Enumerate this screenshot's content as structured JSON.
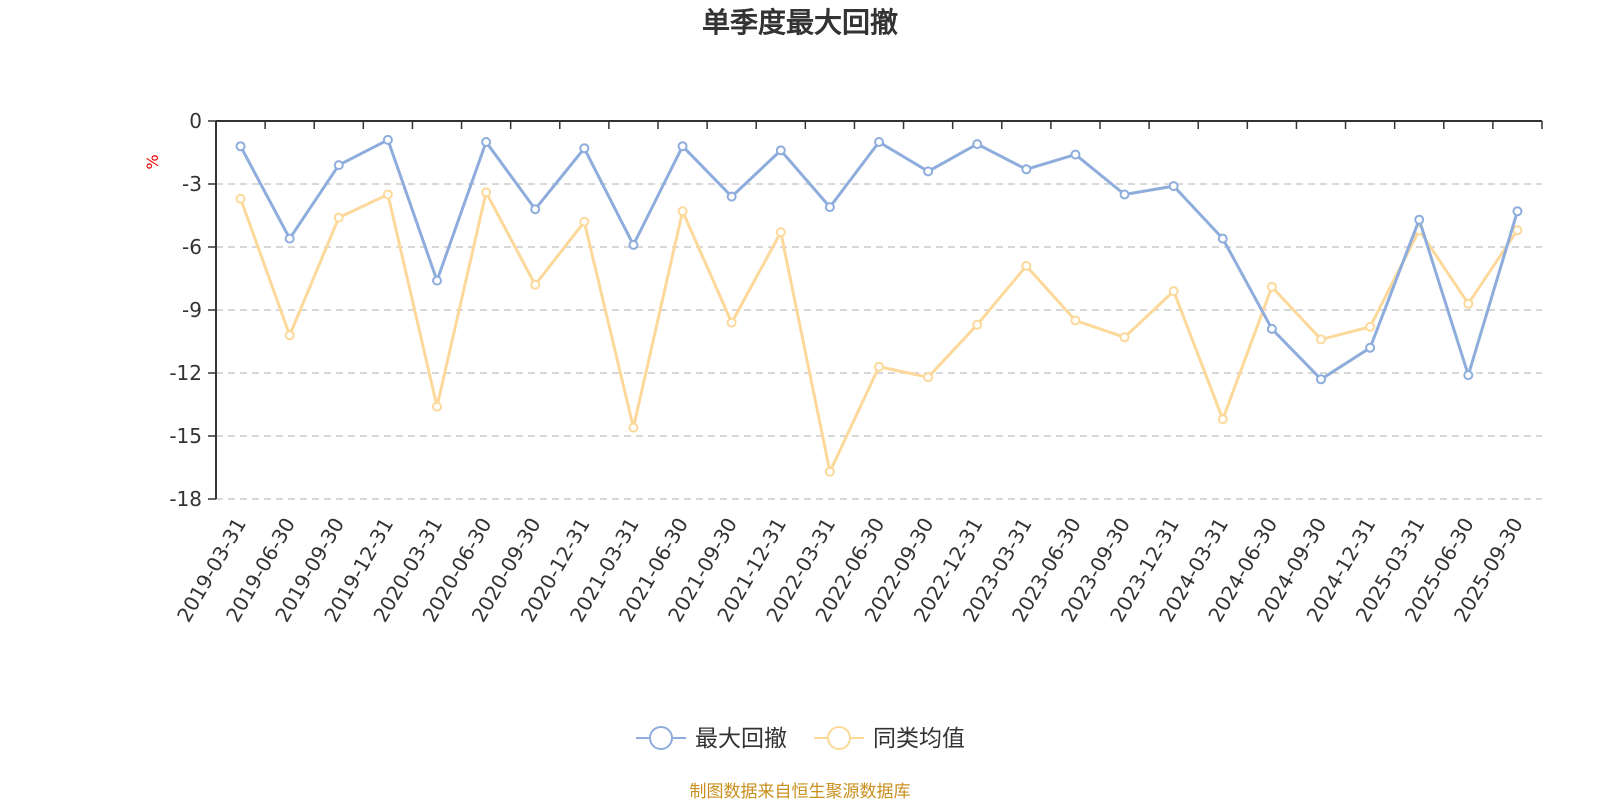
{
  "chart_data": {
    "type": "line",
    "title": "单季度最大回撤",
    "ylabel": "%",
    "ylim": [
      -18,
      0
    ],
    "yticks": [
      0,
      -3,
      -6,
      -9,
      -12,
      -15,
      -18
    ],
    "grid": true,
    "legend_position": "bottom-center",
    "categories": [
      "2019-03-31",
      "2019-06-30",
      "2019-09-30",
      "2019-12-31",
      "2020-03-31",
      "2020-06-30",
      "2020-09-30",
      "2020-12-31",
      "2021-03-31",
      "2021-06-30",
      "2021-09-30",
      "2021-12-31",
      "2022-03-31",
      "2022-06-30",
      "2022-09-30",
      "2022-12-31",
      "2023-03-31",
      "2023-06-30",
      "2023-09-30",
      "2023-12-31",
      "2024-03-31",
      "2024-06-30",
      "2024-09-30",
      "2024-12-31",
      "2025-03-31",
      "2025-06-30",
      "2025-09-30"
    ],
    "series": [
      {
        "name": "最大回撤",
        "color": "#8eaddc",
        "values": [
          -1.2,
          -5.6,
          -2.1,
          -0.9,
          -7.6,
          -1.0,
          -4.2,
          -1.3,
          -5.9,
          -1.2,
          -3.6,
          -1.4,
          -4.1,
          -1.0,
          -2.4,
          -1.1,
          -2.3,
          -1.6,
          -3.5,
          -3.1,
          -5.6,
          -9.9,
          -12.3,
          -10.8,
          -4.7,
          -12.1,
          -4.3
        ]
      },
      {
        "name": "同类均值",
        "color": "#fcd99a",
        "values": [
          -3.7,
          -10.2,
          -4.6,
          -3.5,
          -13.6,
          -3.4,
          -7.8,
          -4.8,
          -14.6,
          -4.3,
          -9.6,
          -5.3,
          -16.7,
          -11.7,
          -12.2,
          -9.7,
          -6.9,
          -9.5,
          -10.3,
          -8.1,
          -14.2,
          -7.9,
          -10.4,
          -9.8,
          -5.2,
          -8.7,
          -5.2
        ]
      }
    ]
  },
  "footer": {
    "source": "制图数据来自恒生聚源数据库"
  }
}
